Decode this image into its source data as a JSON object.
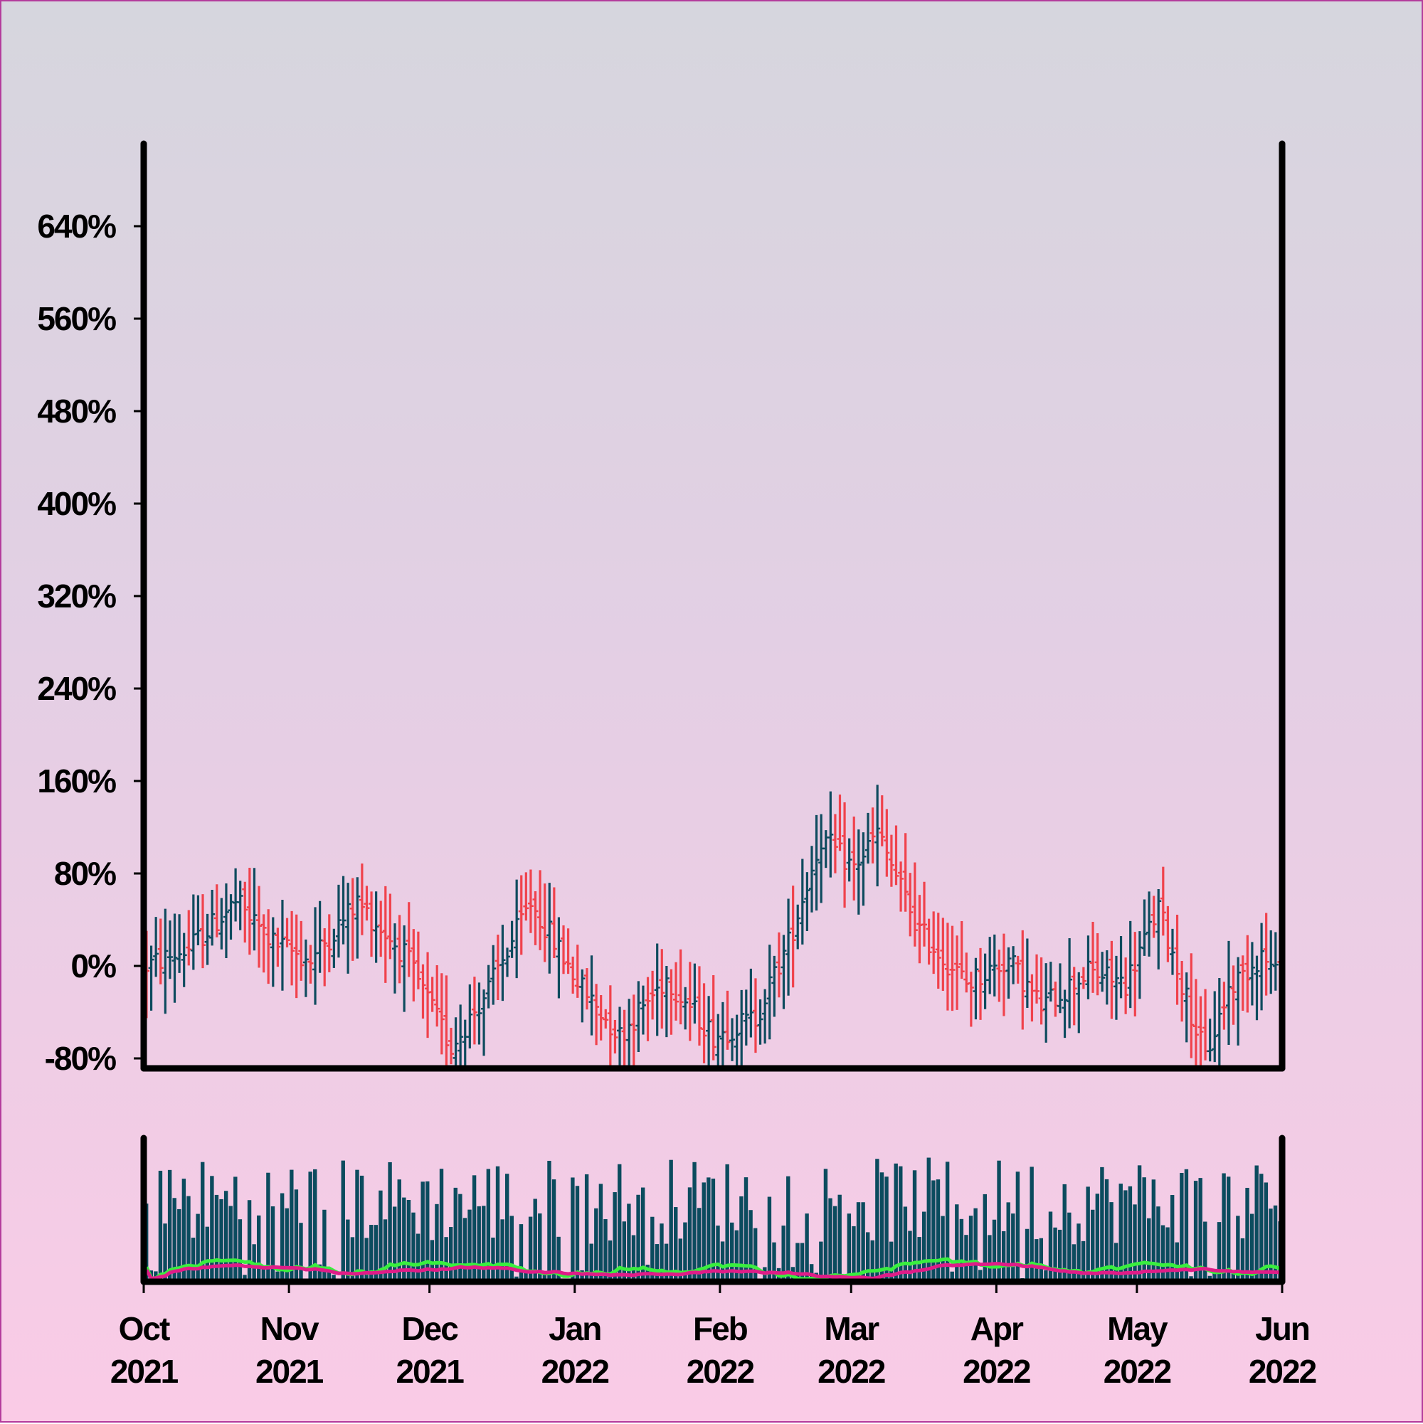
{
  "chart_data": [
    {
      "type": "ohlc",
      "title": "",
      "xlabel": "",
      "ylabel": "",
      "y_unit": "%",
      "ylim": [
        -80,
        720
      ],
      "yticks": [
        -80,
        0,
        80,
        160,
        240,
        320,
        400,
        480,
        560,
        640
      ],
      "ytick_labels": [
        "-80%",
        "0%",
        "80%",
        "160%",
        "240%",
        "320%",
        "400%",
        "480%",
        "560%",
        "640%"
      ],
      "xlim": [
        "2021-10-01",
        "2022-06-01"
      ],
      "grid": false,
      "colors": {
        "up": "#0e4b5e",
        "down": "#f0424c"
      },
      "anchors": [
        [
          "2021-10-01",
          0
        ],
        [
          "2021-10-10",
          15
        ],
        [
          "2021-10-20",
          55
        ],
        [
          "2021-10-28",
          20
        ],
        [
          "2021-11-05",
          5
        ],
        [
          "2021-11-15",
          55
        ],
        [
          "2021-11-25",
          10
        ],
        [
          "2021-12-05",
          -70
        ],
        [
          "2021-12-13",
          -20
        ],
        [
          "2021-12-22",
          55
        ],
        [
          "2022-01-02",
          -20
        ],
        [
          "2022-01-10",
          -60
        ],
        [
          "2022-01-20",
          -10
        ],
        [
          "2022-01-30",
          -60
        ],
        [
          "2022-02-08",
          -45
        ],
        [
          "2022-02-15",
          20
        ],
        [
          "2022-02-22",
          110
        ],
        [
          "2022-03-01",
          85
        ],
        [
          "2022-03-06",
          115
        ],
        [
          "2022-03-15",
          30
        ],
        [
          "2022-03-25",
          -15
        ],
        [
          "2022-04-03",
          5
        ],
        [
          "2022-04-10",
          -35
        ],
        [
          "2022-04-20",
          -5
        ],
        [
          "2022-04-28",
          -15
        ],
        [
          "2022-05-05",
          50
        ],
        [
          "2022-05-15",
          -80
        ],
        [
          "2022-05-20",
          -20
        ],
        [
          "2022-05-27",
          10
        ],
        [
          "2022-06-01",
          -20
        ]
      ]
    },
    {
      "type": "bar",
      "name": "volume",
      "xlim": [
        "2021-10-01",
        "2022-06-01"
      ],
      "bar_color": "#0b4b5e",
      "overlays": [
        {
          "name": "",
          "color": "#39ee3f"
        },
        {
          "name": "",
          "color": "#e01c88"
        }
      ],
      "xticks": [
        "2021-10-01",
        "2021-11-01",
        "2021-12-01",
        "2022-01-01",
        "2022-02-01",
        "2022-03-01",
        "2022-04-01",
        "2022-05-01",
        "2022-06-01"
      ],
      "xtick_labels": [
        [
          "Oct",
          "2021"
        ],
        [
          "Nov",
          "2021"
        ],
        [
          "Dec",
          "2021"
        ],
        [
          "Jan",
          "2022"
        ],
        [
          "Feb",
          "2022"
        ],
        [
          "Mar",
          "2022"
        ],
        [
          "Apr",
          "2022"
        ],
        [
          "May",
          "2022"
        ],
        [
          "Jun",
          "2022"
        ]
      ]
    }
  ]
}
